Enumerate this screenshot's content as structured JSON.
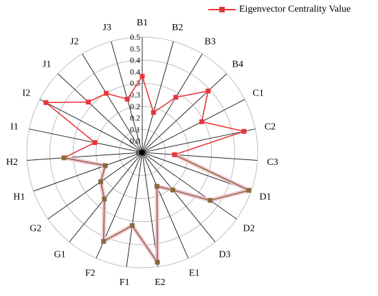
{
  "chart_data": {
    "type": "radar",
    "title": "",
    "categories": [
      "B1",
      "B2",
      "B3",
      "B4",
      "C1",
      "C2",
      "C3",
      "D1",
      "D2",
      "D3",
      "E1",
      "E2",
      "F1",
      "F2",
      "G1",
      "G2",
      "H1",
      "H2",
      "I1",
      "I2",
      "J1",
      "J2",
      "J3"
    ],
    "series": [
      {
        "name": "Eigenvector Centrality Value",
        "values": [
          0.33,
          0.18,
          0.28,
          0.39,
          0.29,
          0.45,
          0.14,
          0.49,
          0.36,
          0.21,
          0.16,
          0.48,
          0.32,
          0.42,
          0.26,
          0.22,
          0.17,
          0.34,
          0.21,
          0.47,
          0.32,
          0.3,
          0.24
        ],
        "color": "#e8353b",
        "band_color": "#8b6a3e"
      }
    ],
    "r_ticks": [
      "0",
      "0.0",
      "0.1",
      "0.2",
      "0.2",
      "0.3",
      "0.3",
      "0.4",
      "0.4",
      "0.5",
      "0.5"
    ],
    "r_range": [
      0,
      0.5
    ],
    "grid": true,
    "legend_position": "top-right"
  }
}
